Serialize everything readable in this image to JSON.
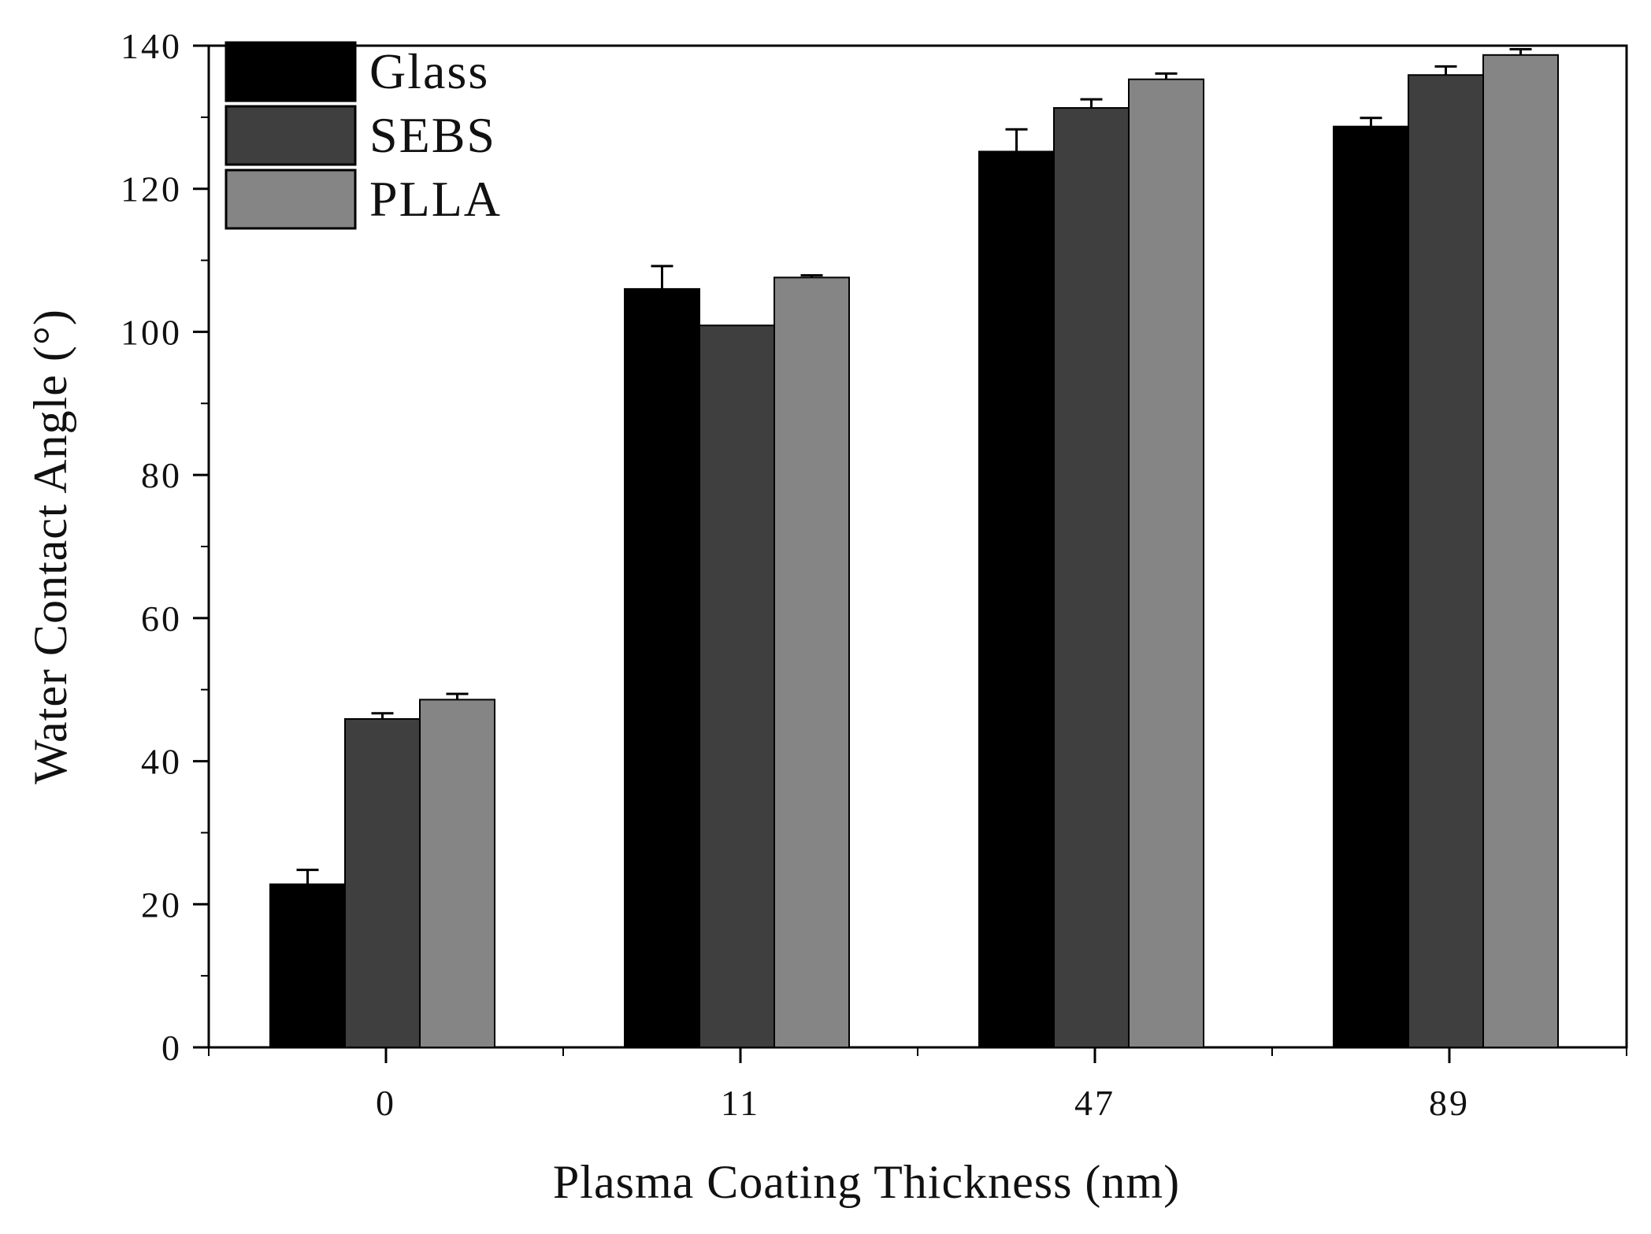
{
  "chart_data": {
    "type": "bar",
    "title": "",
    "xlabel": "Plasma Coating Thickness (nm)",
    "ylabel": "Water Contact Angle (°)",
    "ylim": [
      0,
      140
    ],
    "yticks": [
      0,
      20,
      40,
      60,
      80,
      100,
      120,
      140
    ],
    "categories": [
      "0",
      "11",
      "47",
      "89"
    ],
    "legend_position": "top-left",
    "grid": false,
    "series": [
      {
        "name": "Glass",
        "color": "#000000",
        "values": [
          22.8,
          106.0,
          125.2,
          128.7
        ],
        "errors": [
          2.0,
          3.2,
          3.1,
          1.2
        ]
      },
      {
        "name": "SEBS",
        "color": "#3f3f3f",
        "values": [
          45.9,
          100.9,
          131.3,
          135.9
        ],
        "errors": [
          0.8,
          0.0,
          1.2,
          1.2
        ]
      },
      {
        "name": "PLLA",
        "color": "#858585",
        "values": [
          48.6,
          107.6,
          135.3,
          138.7
        ],
        "errors": [
          0.8,
          0.3,
          0.8,
          0.8
        ]
      }
    ]
  }
}
